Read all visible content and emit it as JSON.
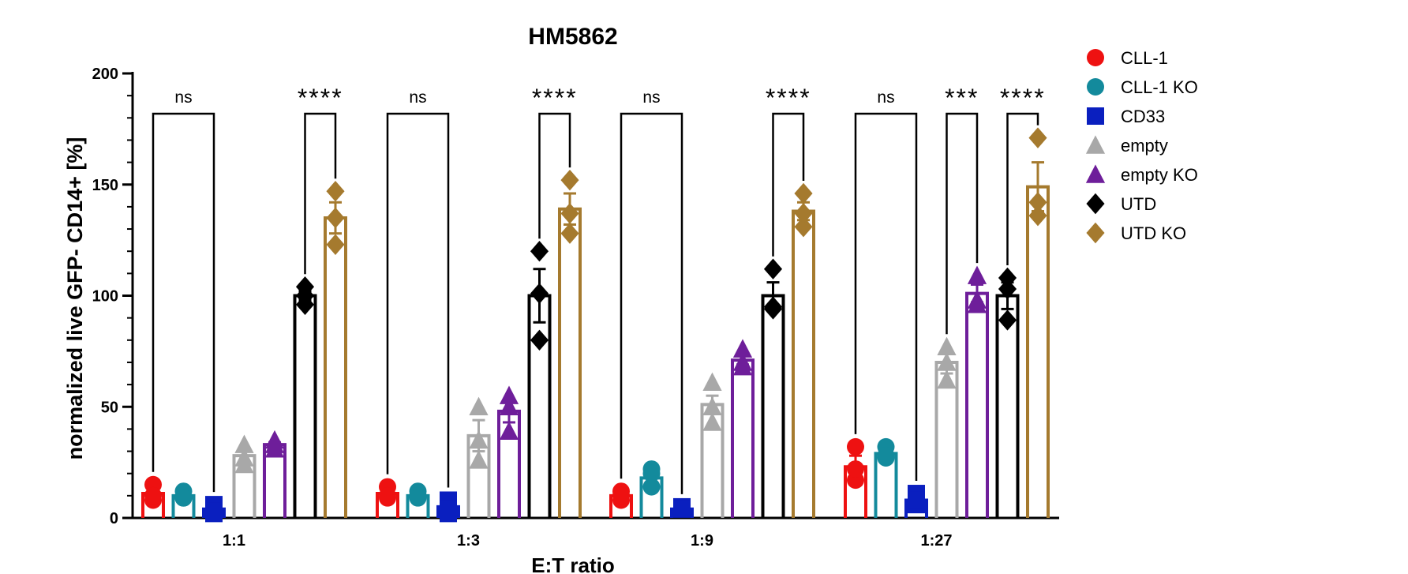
{
  "chart_data": {
    "type": "bar",
    "title": "HM5862",
    "xlabel": "E:T ratio",
    "ylabel": "normalized live GFP- CD14+ [%]",
    "ylim": [
      0,
      200
    ],
    "yticks": [
      0,
      50,
      100,
      150,
      200
    ],
    "categories": [
      "1:1",
      "1:3",
      "1:9",
      "1:27"
    ],
    "legend_position": "right",
    "series": [
      {
        "name": "CLL-1",
        "marker": "circle",
        "color": "#ee1111",
        "values": [
          11,
          11,
          10,
          23
        ],
        "errors": [
          2,
          2,
          1,
          5
        ],
        "points": [
          [
            15,
            8,
            10
          ],
          [
            14,
            9,
            10
          ],
          [
            12,
            8,
            10
          ],
          [
            32,
            17,
            22
          ]
        ]
      },
      {
        "name": "CLL-1 KO",
        "marker": "circle",
        "color": "#138a9c",
        "values": [
          10,
          10,
          18,
          29
        ],
        "errors": [
          1,
          1,
          3,
          2
        ],
        "points": [
          [
            12,
            9,
            9
          ],
          [
            12,
            10,
            9
          ],
          [
            22,
            14,
            20
          ],
          [
            32,
            27,
            28
          ]
        ]
      },
      {
        "name": "CD33",
        "marker": "square",
        "color": "#0a1fbf",
        "values": [
          4,
          5,
          4,
          8
        ],
        "errors": [
          2,
          3,
          1,
          2
        ],
        "points": [
          [
            6,
            2,
            3
          ],
          [
            8,
            2,
            4
          ],
          [
            5,
            4,
            4
          ],
          [
            11,
            6,
            8
          ]
        ]
      },
      {
        "name": "empty",
        "marker": "triangle",
        "color": "#a8a8a8",
        "values": [
          28,
          37,
          51,
          70
        ],
        "errors": [
          3,
          7,
          4,
          5
        ],
        "points": [
          [
            33,
            24,
            27
          ],
          [
            50,
            26,
            35
          ],
          [
            61,
            43,
            50
          ],
          [
            77,
            62,
            70
          ]
        ]
      },
      {
        "name": "empty KO",
        "marker": "triangle",
        "color": "#6e1e9a",
        "values": [
          33,
          48,
          71,
          101
        ],
        "errors": [
          1,
          5,
          2,
          4
        ],
        "points": [
          [
            35,
            31,
            33
          ],
          [
            55,
            39,
            50
          ],
          [
            76,
            68,
            70
          ],
          [
            109,
            96,
            98
          ]
        ]
      },
      {
        "name": "UTD",
        "marker": "diamond",
        "color": "#000000",
        "values": [
          100,
          100,
          100,
          100
        ],
        "errors": [
          2,
          12,
          6,
          6
        ],
        "points": [
          [
            104,
            96,
            100
          ],
          [
            120,
            80,
            101
          ],
          [
            112,
            94,
            95
          ],
          [
            108,
            89,
            103
          ]
        ]
      },
      {
        "name": "UTD KO",
        "marker": "diamond",
        "color": "#a57a2e",
        "values": [
          135,
          139,
          138,
          149
        ],
        "errors": [
          7,
          7,
          4,
          11
        ],
        "points": [
          [
            147,
            123,
            135
          ],
          [
            152,
            128,
            137
          ],
          [
            146,
            131,
            137
          ],
          [
            171,
            136,
            142
          ]
        ]
      }
    ],
    "significance": [
      {
        "category": "1:1",
        "from": "CLL-1",
        "to": "CD33",
        "label": "ns"
      },
      {
        "category": "1:1",
        "from": "UTD",
        "to": "UTD KO",
        "label": "****"
      },
      {
        "category": "1:3",
        "from": "CLL-1",
        "to": "CD33",
        "label": "ns"
      },
      {
        "category": "1:3",
        "from": "UTD",
        "to": "UTD KO",
        "label": "****"
      },
      {
        "category": "1:9",
        "from": "CLL-1",
        "to": "CD33",
        "label": "ns"
      },
      {
        "category": "1:9",
        "from": "UTD",
        "to": "UTD KO",
        "label": "****"
      },
      {
        "category": "1:27",
        "from": "CLL-1",
        "to": "CD33",
        "label": "ns"
      },
      {
        "category": "1:27",
        "from": "empty",
        "to": "empty KO",
        "label": "***"
      },
      {
        "category": "1:27",
        "from": "UTD",
        "to": "UTD KO",
        "label": "****"
      }
    ]
  }
}
